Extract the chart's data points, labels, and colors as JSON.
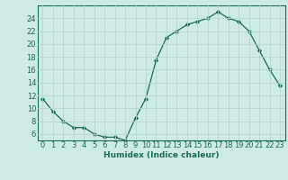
{
  "x": [
    0,
    1,
    2,
    3,
    4,
    5,
    6,
    7,
    8,
    9,
    10,
    11,
    12,
    13,
    14,
    15,
    16,
    17,
    18,
    19,
    20,
    21,
    22,
    23
  ],
  "y": [
    11.5,
    9.5,
    8.0,
    7.0,
    7.0,
    6.0,
    5.5,
    5.5,
    5.0,
    8.5,
    11.5,
    17.5,
    21.0,
    22.0,
    23.0,
    23.5,
    24.0,
    25.0,
    24.0,
    23.5,
    22.0,
    19.0,
    16.0,
    13.5
  ],
  "line_color": "#1a6b5a",
  "marker": "D",
  "marker_size": 2.2,
  "bg_color": "#ceeae4",
  "grid_color": "#b5d5cc",
  "xlabel": "Humidex (Indice chaleur)",
  "xlim": [
    -0.5,
    23.5
  ],
  "ylim": [
    5.0,
    26.0
  ],
  "yticks": [
    6,
    8,
    10,
    12,
    14,
    16,
    18,
    20,
    22,
    24
  ],
  "xticks": [
    0,
    1,
    2,
    3,
    4,
    5,
    6,
    7,
    8,
    9,
    10,
    11,
    12,
    13,
    14,
    15,
    16,
    17,
    18,
    19,
    20,
    21,
    22,
    23
  ],
  "xlabel_fontsize": 6.5,
  "tick_fontsize": 6.0,
  "linewidth": 0.9
}
